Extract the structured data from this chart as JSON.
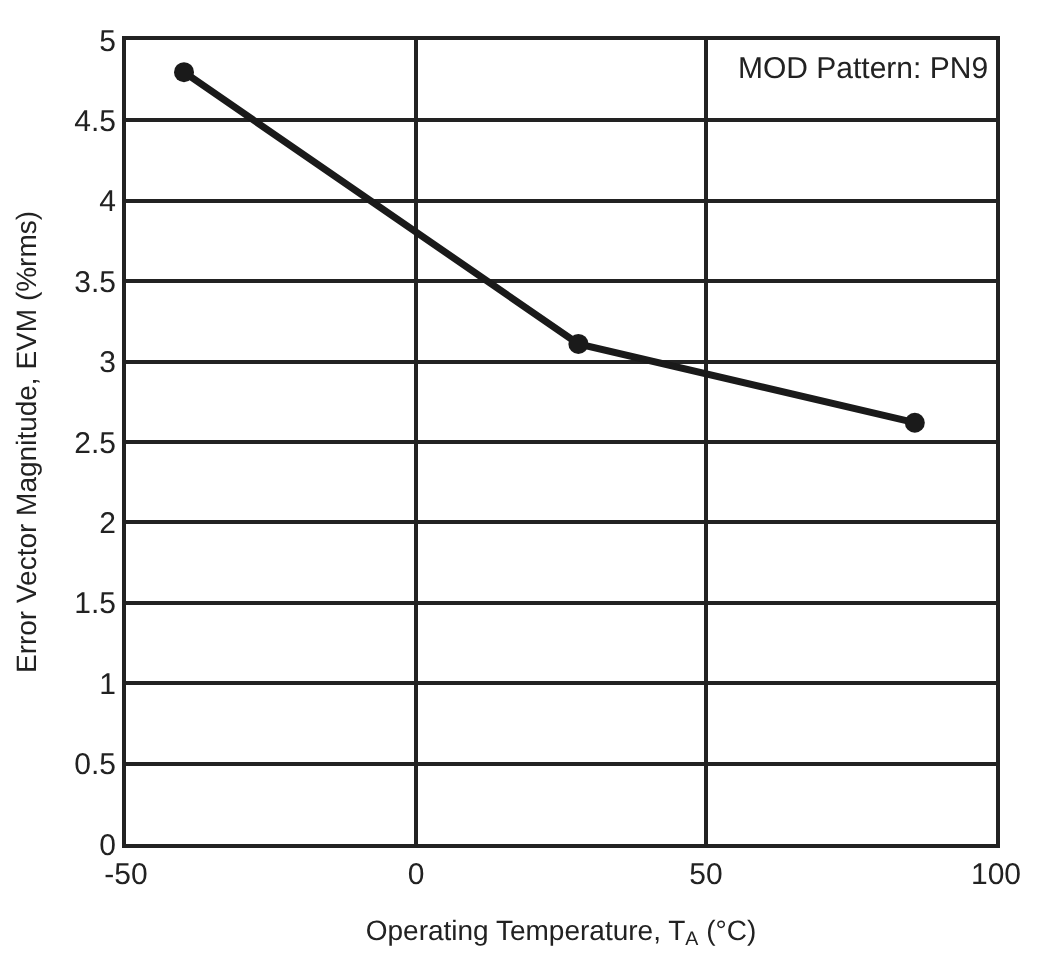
{
  "chart_data": {
    "type": "line",
    "xlabel": "Operating Temperature, T$_{A}$ (°C)",
    "ylabel": "Error Vector Magnitude, EVM (%rms)",
    "annotations": [
      "MOD Pattern: PN9"
    ],
    "x": [
      -40,
      28,
      86
    ],
    "series": [
      {
        "color": "#1a1a1a",
        "values": [
          4.8,
          3.11,
          2.62
        ]
      }
    ],
    "xlim": [
      -50,
      100
    ],
    "xticks": [
      -50,
      0,
      50,
      100
    ],
    "ylim": [
      0,
      5
    ],
    "yticks": [
      0,
      0.5,
      1,
      1.5,
      2,
      2.5,
      3,
      3.5,
      4,
      4.5,
      5
    ],
    "grid": true,
    "marker": "circle",
    "line_style": "solid"
  }
}
